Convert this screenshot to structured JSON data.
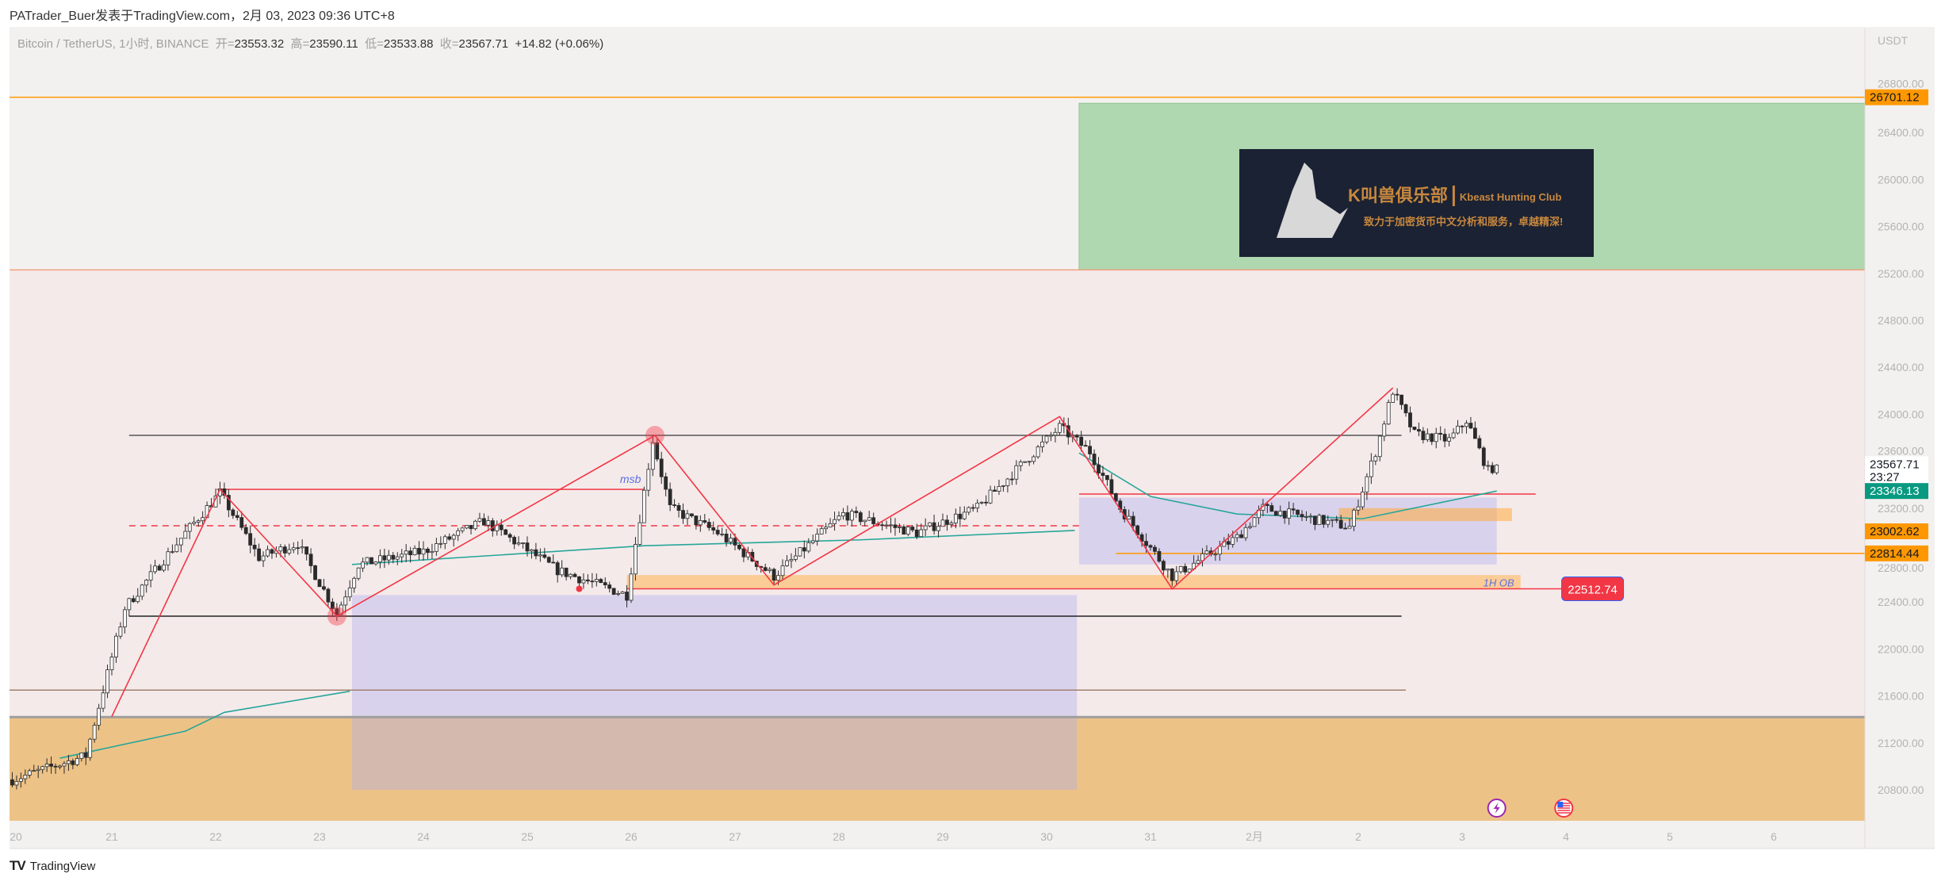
{
  "header": {
    "publish_line": "PATrader_Buer发表于TradingView.com，2月 03, 2023 09:36 UTC+8"
  },
  "legend": {
    "symbol": "Bitcoin / TetherUS, 1小时, BINANCE",
    "open_label": "开=",
    "open": "23553.32",
    "high_label": "高=",
    "high": "23590.11",
    "low_label": "低=",
    "low": "23533.88",
    "close_label": "收=",
    "close": "23567.71",
    "change": "+14.82 (+0.06%)"
  },
  "price_axis": {
    "currency": "USDT",
    "ticks": [
      "26800.00",
      "26400.00",
      "26000.00",
      "25600.00",
      "25200.00",
      "24800.00",
      "24400.00",
      "24000.00",
      "23600.00",
      "23200.00",
      "22800.00",
      "22400.00",
      "22000.00",
      "21600.00",
      "21200.00",
      "20800.00"
    ],
    "labels": [
      {
        "text": "26701.12",
        "price": 26701.12,
        "bg": "#ff9800",
        "fg": "#131722"
      },
      {
        "text": "23567.71",
        "sub": "23:27",
        "price": 23567.71,
        "bg": "#ffffff",
        "fg": "#131722"
      },
      {
        "text": "23346.13",
        "price": 23346.13,
        "bg": "#089981",
        "fg": "#ffffff"
      },
      {
        "text": "23002.62",
        "price": 23002.62,
        "bg": "#ff9800",
        "fg": "#131722"
      },
      {
        "text": "22814.44",
        "price": 22814.44,
        "bg": "#ff9800",
        "fg": "#131722"
      }
    ]
  },
  "time_axis": {
    "ticks": [
      {
        "label": "20",
        "date": "2023-01-20T00:00"
      },
      {
        "label": "21",
        "date": "2023-01-21T00:00"
      },
      {
        "label": "22",
        "date": "2023-01-22T00:00"
      },
      {
        "label": "23",
        "date": "2023-01-23T00:00"
      },
      {
        "label": "24",
        "date": "2023-01-24T00:00"
      },
      {
        "label": "25",
        "date": "2023-01-25T00:00"
      },
      {
        "label": "26",
        "date": "2023-01-26T00:00"
      },
      {
        "label": "27",
        "date": "2023-01-27T00:00"
      },
      {
        "label": "28",
        "date": "2023-01-28T00:00"
      },
      {
        "label": "29",
        "date": "2023-01-29T00:00"
      },
      {
        "label": "30",
        "date": "2023-01-30T00:00"
      },
      {
        "label": "31",
        "date": "2023-01-31T00:00"
      },
      {
        "label": "2月",
        "date": "2023-02-01T00:00"
      },
      {
        "label": "2",
        "date": "2023-02-02T00:00"
      },
      {
        "label": "3",
        "date": "2023-02-03T00:00"
      },
      {
        "label": "4",
        "date": "2023-02-04T00:00"
      },
      {
        "label": "5",
        "date": "2023-02-05T00:00"
      },
      {
        "label": "6",
        "date": "2023-02-06T00:00"
      }
    ]
  },
  "chart_data": {
    "type": "candlestick",
    "interval": "1h",
    "ylim": [
      20600,
      27000
    ],
    "xlim": [
      "2023-01-19T22:00",
      "2023-02-06T18:00"
    ],
    "grid": false,
    "colors": {
      "up": "#ffffff",
      "down": "#2a2a2a",
      "wick": "#2a2a2a",
      "vwap": "#26a69a",
      "zigzag": "#f23645"
    },
    "price_path": [
      [
        "2023-01-20T00:30",
        20880
      ],
      [
        "2023-01-20T18:00",
        21090
      ],
      [
        "2023-01-21T03:00",
        22350
      ],
      [
        "2023-01-21T17:00",
        22990
      ],
      [
        "2023-01-22T01:00",
        23330
      ],
      [
        "2023-01-22T10:00",
        22780
      ],
      [
        "2023-01-22T19:00",
        22900
      ],
      [
        "2023-01-23T04:00",
        22300
      ],
      [
        "2023-01-23T09:00",
        22720
      ],
      [
        "2023-01-24T00:00",
        22830
      ],
      [
        "2023-01-24T14:00",
        23090
      ],
      [
        "2023-01-25T07:00",
        22670
      ],
      [
        "2023-01-25T23:00",
        22460
      ],
      [
        "2023-01-26T05:00",
        23780
      ],
      [
        "2023-01-26T09:00",
        23200
      ],
      [
        "2023-01-26T20:00",
        22990
      ],
      [
        "2023-01-27T09:00",
        22620
      ],
      [
        "2023-01-28T01:00",
        23150
      ],
      [
        "2023-01-28T18:00",
        22990
      ],
      [
        "2023-01-29T08:00",
        23200
      ],
      [
        "2023-01-30T03:00",
        23890
      ],
      [
        "2023-01-30T10:00",
        23680
      ],
      [
        "2023-01-30T17:00",
        23200
      ],
      [
        "2023-01-31T05:00",
        22620
      ],
      [
        "2023-01-31T20:00",
        22950
      ],
      [
        "2023-02-01T02:00",
        23200
      ],
      [
        "2023-02-01T22:00",
        23040
      ],
      [
        "2023-02-02T04:00",
        23680
      ],
      [
        "2023-02-02T08:00",
        24200
      ],
      [
        "2023-02-02T13:00",
        23830
      ],
      [
        "2023-02-02T21:00",
        23780
      ],
      [
        "2023-02-03T01:00",
        23950
      ],
      [
        "2023-02-03T06:00",
        23520
      ],
      [
        "2023-02-03T08:00",
        23567.71
      ]
    ],
    "vwap": [
      [
        [
          "2023-01-20T12:00",
          21070
        ],
        [
          "2023-01-21T17:00",
          21300
        ],
        [
          "2023-01-22T02:00",
          21460
        ],
        [
          "2023-01-23T07:00",
          21640
        ]
      ],
      [
        [
          "2023-01-23T07:30",
          22720
        ],
        [
          "2023-01-26T03:00",
          22880
        ],
        [
          "2023-01-28T05:00",
          22930
        ],
        [
          "2023-01-30T06:30",
          23010
        ]
      ],
      [
        [
          "2023-01-30T07:30",
          23670
        ],
        [
          "2023-01-31T00:00",
          23300
        ],
        [
          "2023-01-31T20:00",
          23150
        ],
        [
          "2023-02-02T01:00",
          23110
        ],
        [
          "2023-02-03T08:00",
          23346.13
        ]
      ]
    ],
    "zigzag": [
      [
        "2023-01-21T00:00",
        21425
      ],
      [
        "2023-01-22T01:00",
        23360
      ],
      [
        "2023-01-23T04:00",
        22280
      ],
      [
        "2023-01-26T05:30",
        23820
      ],
      [
        "2023-01-27T09:00",
        22545
      ],
      [
        "2023-01-30T03:00",
        23980
      ],
      [
        "2023-01-31T05:00",
        22512
      ],
      [
        "2023-02-02T08:00",
        24225
      ]
    ],
    "circles": [
      [
        "2023-01-23T04:00",
        22280
      ],
      [
        "2023-01-26T05:30",
        23820
      ]
    ],
    "zones": [
      {
        "name": "premium-zone",
        "from": 25230,
        "to": 21420,
        "color": "#f5eaea"
      },
      {
        "name": "discount-zone",
        "from": 21420,
        "to": 20600,
        "color": "#edc286"
      }
    ],
    "boxes": [
      {
        "name": "target-box",
        "t1": "2023-01-30T07:30",
        "t2": "end",
        "p1": 26650,
        "p2": 25230,
        "fill": "#b0d8b0",
        "stroke": "#8fc48f"
      },
      {
        "name": "range-box-1",
        "t1": "2023-01-23T07:30",
        "t2": "2023-01-30T07:00",
        "p1": 22460,
        "p2": 20800,
        "fill": "rgba(170,170,240,0.38)",
        "stroke": "none"
      },
      {
        "name": "range-box-2",
        "t1": "2023-01-30T07:30",
        "t2": "2023-02-03T08:00",
        "p1": 23290,
        "p2": 22720,
        "fill": "rgba(170,170,240,0.38)",
        "stroke": "none"
      },
      {
        "name": "order-block-1h",
        "t1": "2023-01-25T23:00",
        "t2": "2023-02-03T13:30",
        "p1": 22630,
        "p2": 22512.74,
        "fill": "rgba(255,183,94,0.6)",
        "stroke": "none",
        "label": "1H OB"
      },
      {
        "name": "small-order-block",
        "t1": "2023-02-01T19:30",
        "t2": "2023-02-03T11:30",
        "p1": 23200,
        "p2": 23090,
        "fill": "rgba(255,170,60,0.55)",
        "stroke": "none"
      }
    ],
    "lines": [
      {
        "name": "level-26701",
        "price": 26701.12,
        "t1": "start",
        "t2": "end",
        "color": "#ff9800",
        "dash": false
      },
      {
        "name": "level-25230",
        "price": 25230,
        "t1": "start",
        "t2": "end",
        "color": "#f0a080",
        "dash": false
      },
      {
        "name": "level-21420",
        "price": 21420,
        "t1": "start",
        "t2": "end",
        "color": "#9e9e9e",
        "dash": false
      },
      {
        "name": "range-high",
        "price": 23820,
        "t1": "2023-01-21T04:00",
        "t2": "2023-02-02T10:00",
        "color": "#555555",
        "dash": false
      },
      {
        "name": "range-mid",
        "price": 23050,
        "t1": "2023-01-21T04:00",
        "t2": "2023-01-30T07:30",
        "color": "#f23645",
        "dash": true
      },
      {
        "name": "range-low",
        "price": 22280,
        "t1": "2023-01-21T04:00",
        "t2": "2023-02-02T10:00",
        "color": "#222222",
        "dash": false
      },
      {
        "name": "level-21650",
        "price": 21650,
        "t1": "start",
        "t2": "2023-02-02T11:00",
        "color": "#a08070",
        "dash": false
      },
      {
        "name": "msb-line",
        "price": 23360,
        "t1": "2023-01-22T00:15",
        "t2": "2023-01-26T03:00",
        "color": "#f23645",
        "dash": false,
        "label": "msb"
      },
      {
        "name": "level-23320",
        "price": 23320,
        "t1": "2023-01-30T07:30",
        "t2": "2023-02-03T17:00",
        "color": "#f23645",
        "dash": false
      },
      {
        "name": "level-22814",
        "price": 22814.44,
        "t1": "2023-01-30T16:00",
        "t2": "end",
        "color": "#ff9800",
        "dash": false
      },
      {
        "name": "ob-line",
        "price": 22512.74,
        "t1": "2023-01-25T23:00",
        "t2": "2023-02-03T23:00",
        "color": "#f23645",
        "dash": false,
        "label": "22512.74"
      }
    ],
    "markers": [
      {
        "name": "red-dot",
        "date": "2023-01-25T12:00",
        "price": 22512.74
      }
    ],
    "events": [
      {
        "icon": "lightning-icon",
        "date": "2023-02-03T08:00",
        "color": "#9c27b0"
      },
      {
        "icon": "us-flag-icon",
        "date": "2023-02-03T23:30",
        "color": "#f23645"
      }
    ]
  },
  "watermark_logo": {
    "title": "K叫兽俱乐部",
    "subtitle": "Kbeast Hunting Club",
    "tagline": "致力于加密货币中文分析和服务，卓越精深!"
  },
  "footer": {
    "brand": "TradingView",
    "logo_mark": "TV"
  }
}
